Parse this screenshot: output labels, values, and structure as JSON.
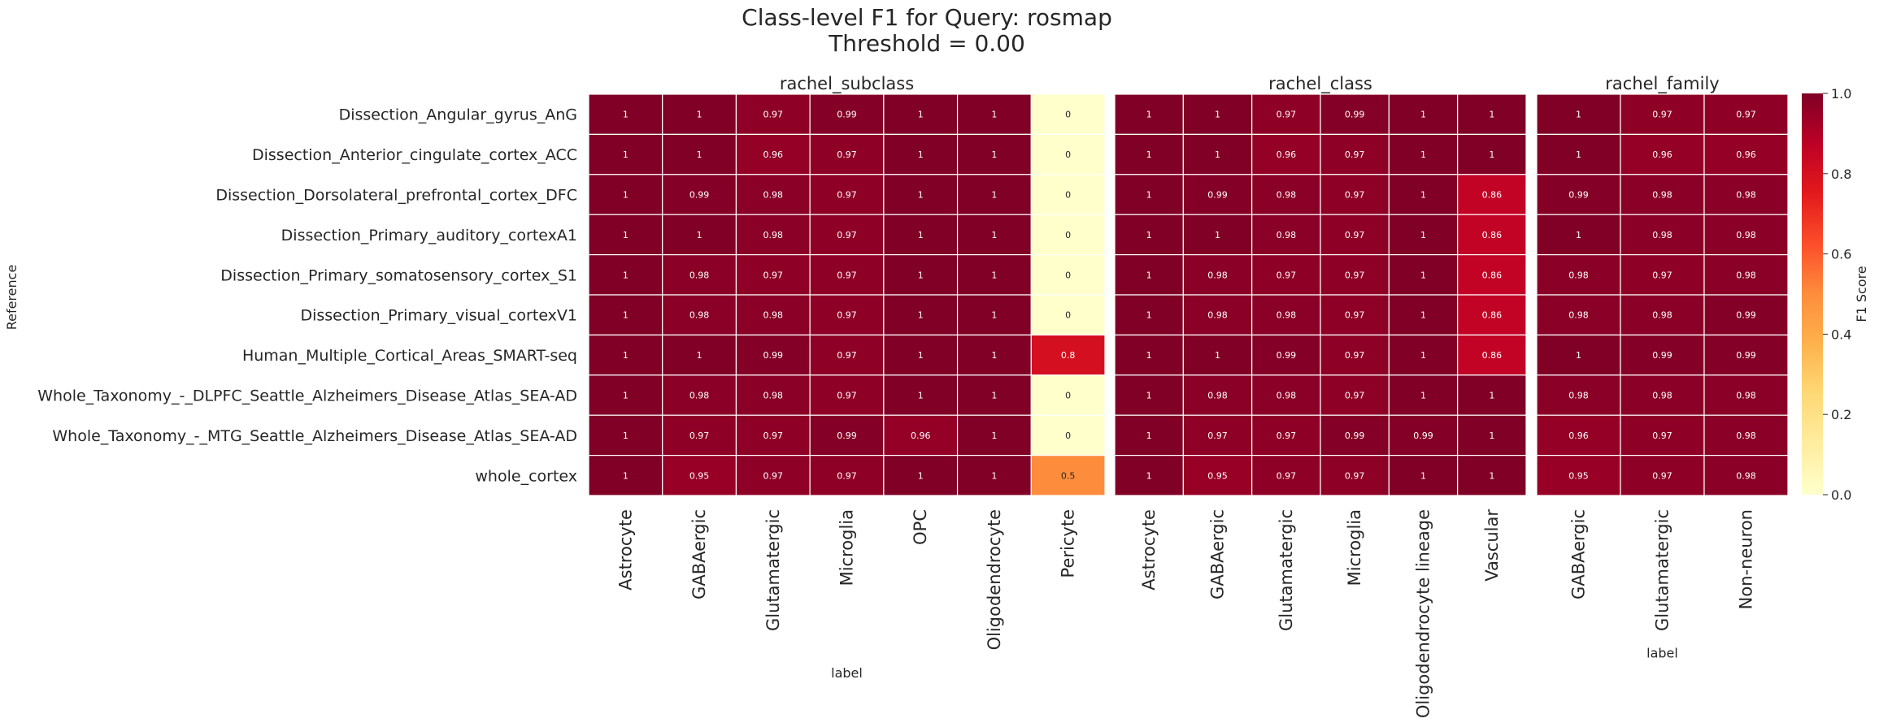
{
  "chart_data": {
    "type": "heatmap",
    "title": "Class-level F1 for Query: rosmap",
    "subtitle": "Threshold = 0.00",
    "ylabel": "Reference",
    "colorbar_label": "F1 Score",
    "colorbar_range": [
      0,
      1
    ],
    "colorbar_ticks": [
      "0.0",
      "0.2",
      "0.4",
      "0.6",
      "0.8",
      "1.0"
    ],
    "colormap": "YlOrRd",
    "rows": [
      "Dissection_Angular_gyrus_AnG",
      "Dissection_Anterior_cingulate_cortex_ACC",
      "Dissection_Dorsolateral_prefrontal_cortex_DFC",
      "Dissection_Primary_auditory_cortexA1",
      "Dissection_Primary_somatosensory_cortex_S1",
      "Dissection_Primary_visual_cortexV1",
      "Human_Multiple_Cortical_Areas_SMART-seq",
      "Whole_Taxonomy_-_DLPFC_Seattle_Alzheimers_Disease_Atlas_SEA-AD",
      "Whole_Taxonomy_-_MTG_Seattle_Alzheimers_Disease_Atlas_SEA-AD",
      "whole_cortex"
    ],
    "panels": [
      {
        "title": "rachel_subclass",
        "xlabel": "label",
        "columns": [
          "Astrocyte",
          "GABAergic",
          "Glutamatergic",
          "Microglia",
          "OPC",
          "Oligodendrocyte",
          "Pericyte"
        ],
        "values": [
          [
            1,
            1,
            0.97,
            0.99,
            1,
            1,
            0
          ],
          [
            1,
            1,
            0.96,
            0.97,
            1,
            1,
            0
          ],
          [
            1,
            0.99,
            0.98,
            0.97,
            1,
            1,
            0
          ],
          [
            1,
            1,
            0.98,
            0.97,
            1,
            1,
            0
          ],
          [
            1,
            0.98,
            0.97,
            0.97,
            1,
            1,
            0
          ],
          [
            1,
            0.98,
            0.98,
            0.97,
            1,
            1,
            0
          ],
          [
            1,
            1,
            0.99,
            0.97,
            1,
            1,
            0.8
          ],
          [
            1,
            0.98,
            0.98,
            0.97,
            1,
            1,
            0
          ],
          [
            1,
            0.97,
            0.97,
            0.99,
            0.96,
            1,
            0
          ],
          [
            1,
            0.95,
            0.97,
            0.97,
            1,
            1,
            0.5
          ]
        ]
      },
      {
        "title": "rachel_class",
        "xlabel": "label",
        "columns": [
          "Astrocyte",
          "GABAergic",
          "Glutamatergic",
          "Microglia",
          "Oligodendrocyte lineage",
          "Vascular"
        ],
        "values": [
          [
            1,
            1,
            0.97,
            0.99,
            1,
            1
          ],
          [
            1,
            1,
            0.96,
            0.97,
            1,
            1
          ],
          [
            1,
            0.99,
            0.98,
            0.97,
            1,
            0.86
          ],
          [
            1,
            1,
            0.98,
            0.97,
            1,
            0.86
          ],
          [
            1,
            0.98,
            0.97,
            0.97,
            1,
            0.86
          ],
          [
            1,
            0.98,
            0.98,
            0.97,
            1,
            0.86
          ],
          [
            1,
            1,
            0.99,
            0.97,
            1,
            0.86
          ],
          [
            1,
            0.98,
            0.98,
            0.97,
            1,
            1
          ],
          [
            1,
            0.97,
            0.97,
            0.99,
            0.99,
            1
          ],
          [
            1,
            0.95,
            0.97,
            0.97,
            1,
            1
          ]
        ]
      },
      {
        "title": "rachel_family",
        "xlabel": "label",
        "columns": [
          "GABAergic",
          "Glutamatergic",
          "Non-neuron"
        ],
        "values": [
          [
            1,
            0.97,
            0.97
          ],
          [
            1,
            0.96,
            0.96
          ],
          [
            0.99,
            0.98,
            0.98
          ],
          [
            1,
            0.98,
            0.98
          ],
          [
            0.98,
            0.97,
            0.98
          ],
          [
            0.98,
            0.98,
            0.99
          ],
          [
            1,
            0.99,
            0.99
          ],
          [
            0.98,
            0.98,
            0.98
          ],
          [
            0.96,
            0.97,
            0.98
          ],
          [
            0.95,
            0.97,
            0.98
          ]
        ]
      }
    ]
  }
}
